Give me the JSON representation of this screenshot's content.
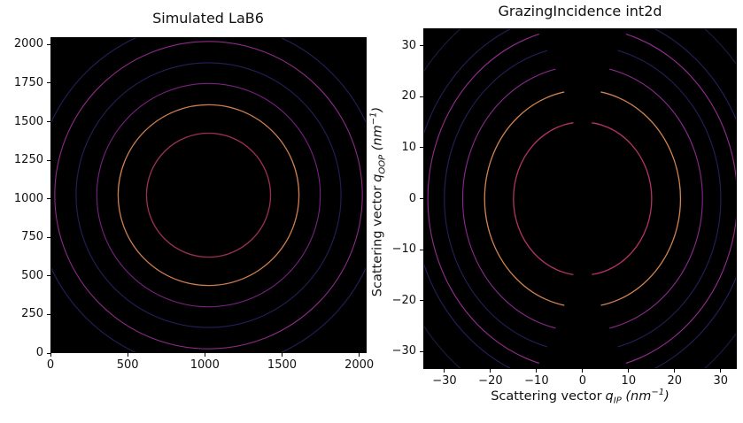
{
  "figure": {
    "background": "#ffffff"
  },
  "chart_data": [
    {
      "type": "contour-rings",
      "title": "Simulated LaB6",
      "xlabel": "",
      "ylabel": "",
      "xlim": [
        0,
        2048
      ],
      "ylim": [
        0,
        2048
      ],
      "x_tick_values": [
        0,
        500,
        1000,
        1500,
        2000
      ],
      "x_tick_labels": [
        "0",
        "500",
        "1000",
        "1500",
        "2000"
      ],
      "y_tick_values": [
        0,
        250,
        500,
        750,
        1000,
        1250,
        1500,
        1750,
        2000
      ],
      "y_tick_labels": [
        "0",
        "250",
        "500",
        "750",
        "1000",
        "1250",
        "1500",
        "1750",
        "2000"
      ],
      "background": "#000000",
      "grid": false,
      "center": [
        1024,
        1024
      ],
      "rings": [
        {
          "r": 404,
          "color": "#9c2f5a",
          "width": 1.3
        },
        {
          "r": 589,
          "color": "#cd7e4e",
          "width": 1.3
        },
        {
          "r": 728,
          "color": "#7a2183",
          "width": 1.1
        },
        {
          "r": 863,
          "color": "#2b1d5a",
          "width": 1.1
        },
        {
          "r": 1002,
          "color": "#8c2b88",
          "width": 1.1
        },
        {
          "r": 1130,
          "color": "#2b1d5a",
          "width": 1.1
        }
      ]
    },
    {
      "type": "contour-rings",
      "title": "GrazingIncidence int2d",
      "xlabel_parts": {
        "prefix": "Scattering vector",
        "symbol": "q",
        "subscript": "IP",
        "open": "(",
        "unit": "nm",
        "exponent": "−1",
        "close": ")"
      },
      "ylabel_parts": {
        "prefix": "Scattering vector",
        "symbol": "q",
        "subscript": "OOP",
        "open": "(",
        "unit": "nm",
        "exponent": "−1",
        "close": ")"
      },
      "xlim": [
        -34.6,
        33.5
      ],
      "ylim": [
        -33.4,
        33.4
      ],
      "x_tick_values": [
        -30,
        -20,
        -10,
        0,
        10,
        20,
        30
      ],
      "x_tick_labels": [
        "−30",
        "−20",
        "−10",
        "0",
        "10",
        "20",
        "30"
      ],
      "y_tick_values": [
        -30,
        -20,
        -10,
        0,
        10,
        20,
        30
      ],
      "y_tick_labels": [
        "−30",
        "−20",
        "−10",
        "0",
        "10",
        "20",
        "30"
      ],
      "background": "#000000",
      "grid": false,
      "center": [
        0,
        0
      ],
      "rings": [
        {
          "r": 15.1,
          "color": "#b13366",
          "width": 1.3
        },
        {
          "r": 21.4,
          "color": "#d28450",
          "width": 1.3
        },
        {
          "r": 26.2,
          "color": "#8a2a8e",
          "width": 1.1
        },
        {
          "r": 30.2,
          "color": "#2b1d5a",
          "width": 1.1
        },
        {
          "r": 33.8,
          "color": "#932d90",
          "width": 1.1
        },
        {
          "r": 37.0,
          "color": "#2b1d5a",
          "width": 1.1
        },
        {
          "r": 42.8,
          "color": "#221847",
          "width": 1.1
        }
      ],
      "missing_wedge": {
        "axis": "vertical",
        "half_width_coeff": 0.009
      }
    }
  ]
}
